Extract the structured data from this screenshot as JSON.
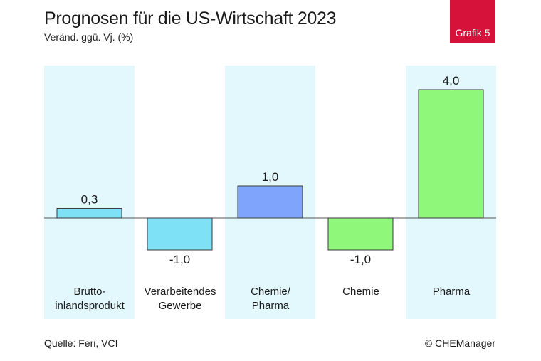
{
  "header": {
    "title": "Prognosen für die US-Wirtschaft 2023",
    "subtitle": "Veränd. ggü. Vj. (%)",
    "badge": "Grafik 5"
  },
  "footer": {
    "source": "Quelle: Feri, VCI",
    "copyright": "© CHEManager"
  },
  "chart_data": {
    "type": "bar",
    "categories": [
      "Brutto-\ninlandsprodukt",
      "Verarbeitendes\nGewerbe",
      "Chemie/\nPharma",
      "Chemie",
      "Pharma"
    ],
    "values": [
      0.3,
      -1.0,
      1.0,
      -1.0,
      4.0
    ],
    "value_labels": [
      "0,3",
      "-1,0",
      "1,0",
      "-1,0",
      "4,0"
    ],
    "bar_colors": [
      "#7fe1f5",
      "#7fe1f5",
      "#7ea5fb",
      "#8ff77a",
      "#8ff77a"
    ],
    "band_color": "#e3f8fd",
    "shaded_columns": [
      0,
      2,
      4
    ],
    "ylim": [
      -2.05,
      4.7
    ],
    "grid": false,
    "legend": "none",
    "title": "Prognosen für die US-Wirtschaft 2023",
    "ylabel": "Veränd. ggü. Vj. (%)"
  }
}
